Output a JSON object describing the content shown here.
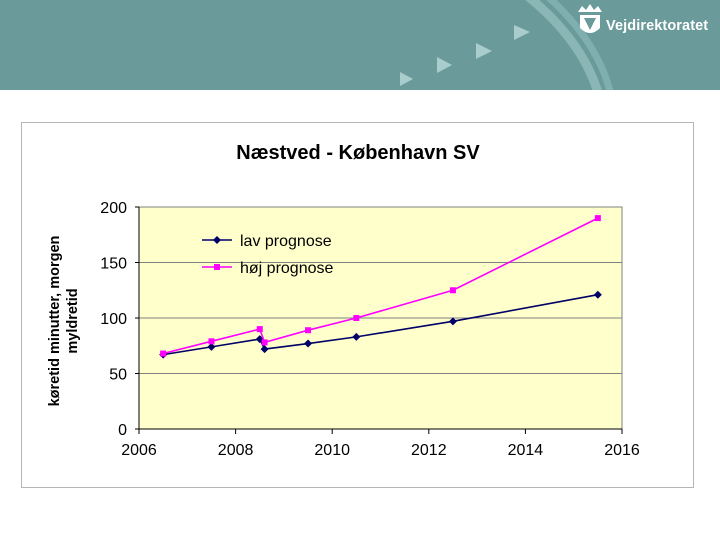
{
  "brand": {
    "name": "Vejdirektoratet",
    "header_color": "#6a9a9a"
  },
  "chart_data": {
    "type": "line",
    "title": "Næstved - København SV",
    "xlabel": "",
    "ylabel": "køretid minutter, morgen myldretid",
    "ylabel_lines": [
      "køretid minutter, morgen",
      "myldretid"
    ],
    "xlim": [
      2006,
      2016
    ],
    "ylim": [
      0,
      200
    ],
    "x_ticks": [
      2006,
      2008,
      2010,
      2012,
      2014,
      2016
    ],
    "y_ticks": [
      0,
      50,
      100,
      150,
      200
    ],
    "grid": "horizontal",
    "plot_background": "#ffffcc",
    "legend_position": "top-left",
    "series": [
      {
        "name": "lav prognose",
        "color": "#000066",
        "marker": "diamond",
        "x": [
          2006.5,
          2007.5,
          2008.5,
          2008.6,
          2009.5,
          2010.5,
          2012.5,
          2015.5
        ],
        "y": [
          67,
          74,
          81,
          72,
          77,
          83,
          97,
          121
        ]
      },
      {
        "name": "høj prognose",
        "color": "#ff00ff",
        "marker": "square",
        "x": [
          2006.5,
          2007.5,
          2008.5,
          2008.6,
          2009.5,
          2010.5,
          2012.5,
          2015.5
        ],
        "y": [
          68,
          79,
          90,
          78,
          89,
          100,
          125,
          190
        ]
      }
    ]
  }
}
